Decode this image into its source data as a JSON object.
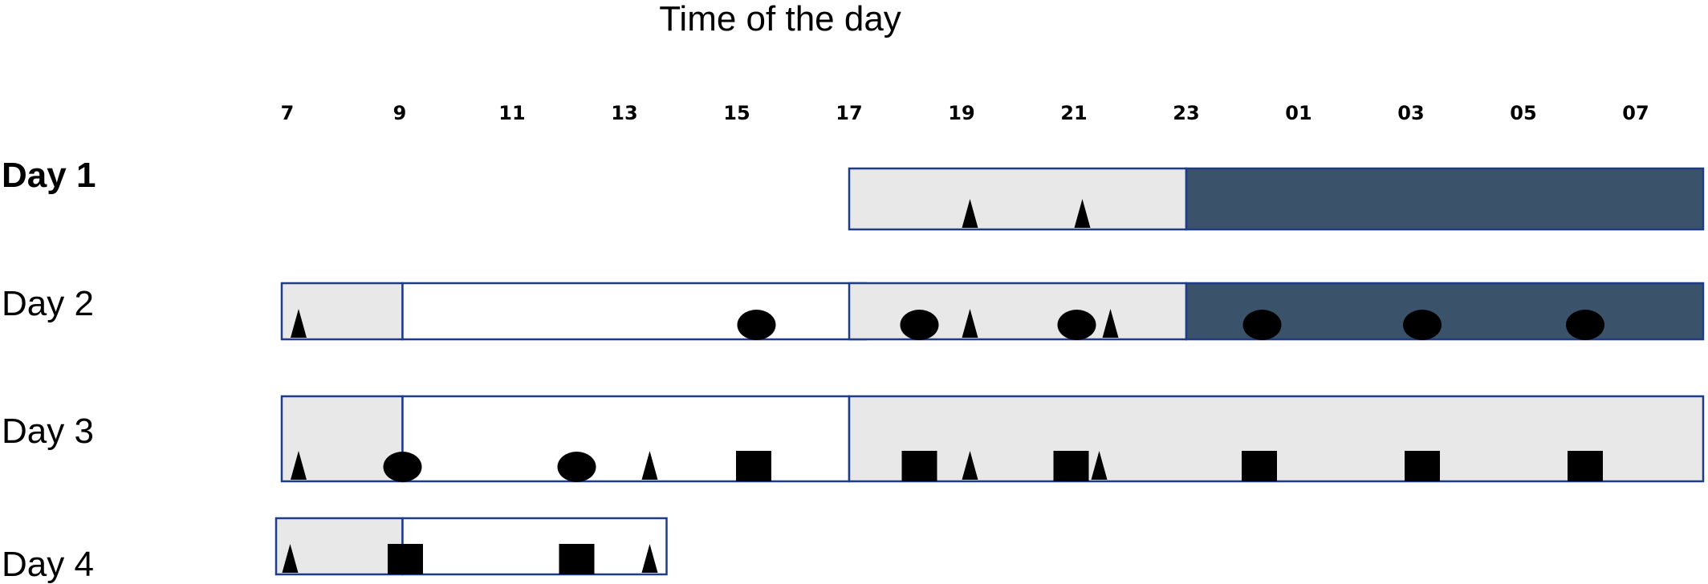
{
  "title": "Time of the day",
  "hour_ticks": [
    "7",
    "9",
    "11",
    "13",
    "15",
    "17",
    "19",
    "21",
    "23",
    "01",
    "03",
    "05",
    "07"
  ],
  "colors": {
    "light_fill": "#e8e8e8",
    "white_fill": "#ffffff",
    "dark_fill": "#3a536b",
    "border": "#1f3c88",
    "marker": "#000000"
  },
  "days": [
    {
      "label": "Day 1",
      "bold": true,
      "segments": [
        {
          "start": 17,
          "end": 23,
          "fill": "light"
        },
        {
          "start": 23,
          "end": 32.2,
          "fill": "dark"
        }
      ],
      "markers": [
        {
          "hour": 19.15,
          "shape": "triangle"
        },
        {
          "hour": 21.15,
          "shape": "triangle"
        }
      ]
    },
    {
      "label": "Day 2",
      "bold": false,
      "segments": [
        {
          "start": 6.9,
          "end": 9.05,
          "fill": "light"
        },
        {
          "start": 9.05,
          "end": 17.3,
          "fill": "white"
        },
        {
          "start": 17,
          "end": 23,
          "fill": "light"
        },
        {
          "start": 23,
          "end": 32.2,
          "fill": "dark"
        }
      ],
      "markers": [
        {
          "hour": 7.2,
          "shape": "triangle"
        },
        {
          "hour": 15.35,
          "shape": "circle"
        },
        {
          "hour": 18.25,
          "shape": "circle"
        },
        {
          "hour": 19.15,
          "shape": "triangle"
        },
        {
          "hour": 21.05,
          "shape": "circle"
        },
        {
          "hour": 21.65,
          "shape": "triangle"
        },
        {
          "hour": 24.35,
          "shape": "circle"
        },
        {
          "hour": 27.2,
          "shape": "circle"
        },
        {
          "hour": 30.1,
          "shape": "circle"
        }
      ]
    },
    {
      "label": "Day 3",
      "bold": false,
      "segments": [
        {
          "start": 6.9,
          "end": 9.05,
          "fill": "light"
        },
        {
          "start": 9.05,
          "end": 17,
          "fill": "white"
        },
        {
          "start": 17,
          "end": 32.2,
          "fill": "light"
        }
      ],
      "markers": [
        {
          "hour": 7.2,
          "shape": "triangle"
        },
        {
          "hour": 9.05,
          "shape": "circle"
        },
        {
          "hour": 12.15,
          "shape": "circle"
        },
        {
          "hour": 13.45,
          "shape": "triangle"
        },
        {
          "hour": 15.3,
          "shape": "square"
        },
        {
          "hour": 18.25,
          "shape": "square"
        },
        {
          "hour": 19.15,
          "shape": "triangle"
        },
        {
          "hour": 20.95,
          "shape": "square"
        },
        {
          "hour": 21.45,
          "shape": "triangle"
        },
        {
          "hour": 24.3,
          "shape": "square"
        },
        {
          "hour": 27.2,
          "shape": "square"
        },
        {
          "hour": 30.1,
          "shape": "square"
        }
      ]
    },
    {
      "label": "Day 4",
      "bold": false,
      "segments": [
        {
          "start": 6.8,
          "end": 9.05,
          "fill": "light"
        },
        {
          "start": 9.05,
          "end": 13.75,
          "fill": "white"
        }
      ],
      "markers": [
        {
          "hour": 7.05,
          "shape": "triangle"
        },
        {
          "hour": 9.1,
          "shape": "square"
        },
        {
          "hour": 12.15,
          "shape": "square"
        },
        {
          "hour": 13.45,
          "shape": "triangle"
        }
      ]
    }
  ]
}
